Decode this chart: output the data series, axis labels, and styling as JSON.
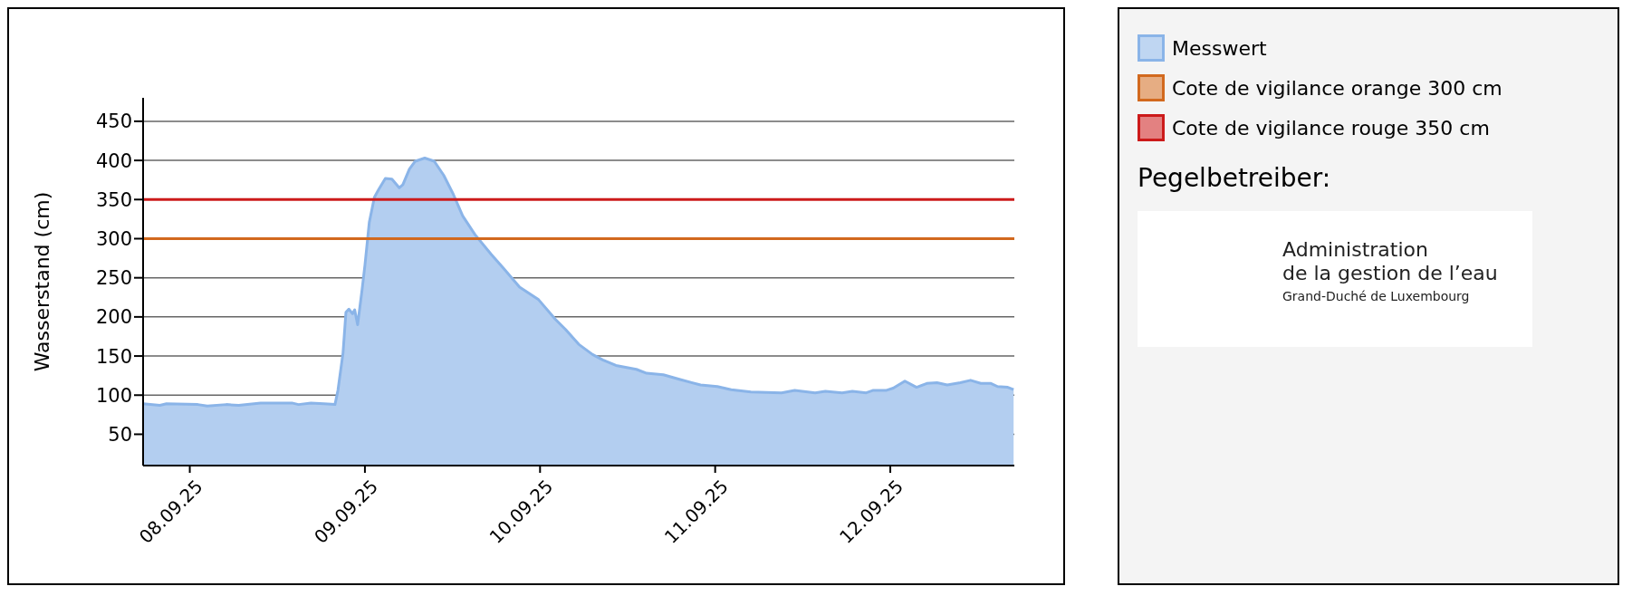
{
  "chart_data": {
    "type": "area",
    "ylabel": "Wasserstand (cm)",
    "x": [
      "--09-07T17:36",
      "--09-07T19:54",
      "--09-07T20:48",
      "--09-08T01:06",
      "--09-08T02:24",
      "--09-08T05:00",
      "--09-08T06:42",
      "--09-08T09:42",
      "--09-08T14:00",
      "--09-08T14:54",
      "--09-08T16:36",
      "--09-08T18:24",
      "--09-08T19:54",
      "--09-08T20:18",
      "--09-08T21:00",
      "--09-08T21:24",
      "--09-08T21:48",
      "--09-08T22:18",
      "--09-08T22:36",
      "--09-08T23:00",
      "--09-08T23:36",
      "--09-09T00:00",
      "--09-09T00:36",
      "--09-09T01:18",
      "--09-09T01:54",
      "--09-09T02:48",
      "--09-09T03:42",
      "--09-09T04:42",
      "--09-09T05:12",
      "--09-09T06:06",
      "--09-09T06:54",
      "--09-09T08:12",
      "--09-09T09:30",
      "--09-09T10:48",
      "--09-09T12:06",
      "--09-09T13:24",
      "--09-09T15:06",
      "--09-09T17:18",
      "--09-09T19:00",
      "--09-09T21:12",
      "--09-09T23:48",
      "--09-10T02:06",
      "--09-10T03:30",
      "--09-10T05:18",
      "--09-10T07:12",
      "--09-10T08:36",
      "--09-10T10:24",
      "--09-10T13:12",
      "--09-10T14:36",
      "--09-10T16:54",
      "--09-10T19:12",
      "--09-10T22:00",
      "--09-11T00:18",
      "--09-11T02:12",
      "--09-11T04:54",
      "--09-11T09:06",
      "--09-11T10:54",
      "--09-11T13:42",
      "--09-11T15:06",
      "--09-11T17:24",
      "--09-11T18:48",
      "--09-11T20:42",
      "--09-11T21:36",
      "--09-11T23:24",
      "--09-12T00:24",
      "--09-12T02:00",
      "--09-12T03:36",
      "--09-12T05:00",
      "--09-12T06:24",
      "--09-12T07:48",
      "--09-12T09:36",
      "--09-12T11:00",
      "--09-12T12:24",
      "--09-12T13:48",
      "--09-12T14:42",
      "--09-12T16:06",
      "--09-12T16:54"
    ],
    "series": [
      {
        "name": "Messwert",
        "color": "#8ab4e8",
        "values": [
          89,
          87,
          89,
          88,
          86,
          88,
          87,
          90,
          90,
          88,
          90,
          89,
          88,
          106,
          154,
          206,
          210,
          204,
          209,
          190,
          234,
          266,
          321,
          353,
          363,
          377,
          376,
          365,
          369,
          389,
          399,
          403,
          399,
          381,
          357,
          329,
          305,
          280,
          262,
          238,
          222,
          197,
          184,
          165,
          152,
          145,
          138,
          133,
          128,
          126,
          120,
          113,
          111,
          107,
          104,
          103,
          106,
          103,
          105,
          103,
          105,
          103,
          106,
          106,
          109,
          118,
          110,
          115,
          116,
          113,
          116,
          119,
          115,
          115,
          111,
          110,
          107
        ]
      }
    ],
    "xlim": [
      "--09-07T17:36",
      "--09-12T17:00"
    ],
    "xticks": [
      {
        "value": "--09-08",
        "label": "08.09.25"
      },
      {
        "value": "--09-09",
        "label": "09.09.25"
      },
      {
        "value": "--09-10",
        "label": "10.09.25"
      },
      {
        "value": "--09-11",
        "label": "11.09.25"
      },
      {
        "value": "--09-12",
        "label": "12.09.25"
      }
    ],
    "ylim": [
      10,
      480
    ],
    "yticks": [
      50,
      100,
      150,
      200,
      250,
      300,
      350,
      400,
      450
    ],
    "grid": "y",
    "legend": "right",
    "marker": "none",
    "line_style": "solid",
    "ref_lines": [
      {
        "axis": "y",
        "value": 300,
        "label": "Cote de vigilance orange 300 cm",
        "color": "#d2691e"
      },
      {
        "axis": "y",
        "value": 350,
        "label": "Cote de vigilance rouge 350 cm",
        "color": "#cc1a1a"
      }
    ],
    "annotations": [
      "Pegelbetreiber:",
      "Administration",
      "de la gestion de l’eau",
      "Grand-Duché de Luxembourg"
    ]
  }
}
